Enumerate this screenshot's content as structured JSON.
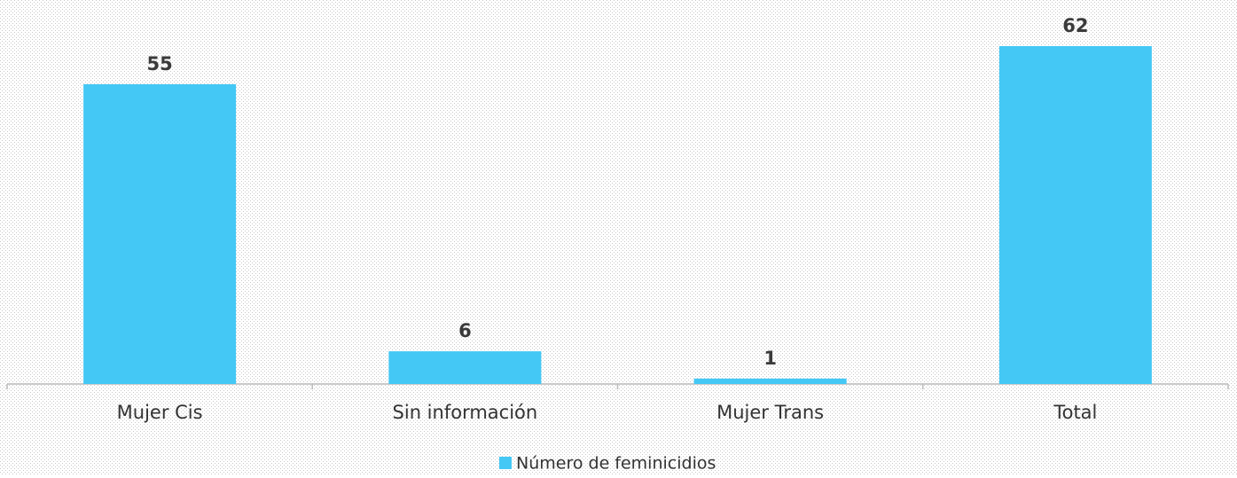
{
  "chart_data": {
    "type": "bar",
    "categories": [
      "Mujer Cis",
      "Sin información",
      "Mujer Trans",
      "Total"
    ],
    "series": [
      {
        "name": "Número de feminicidios",
        "color": "#44c8f5",
        "values": [
          55,
          6,
          1,
          62
        ]
      }
    ],
    "legend": "bottom"
  }
}
